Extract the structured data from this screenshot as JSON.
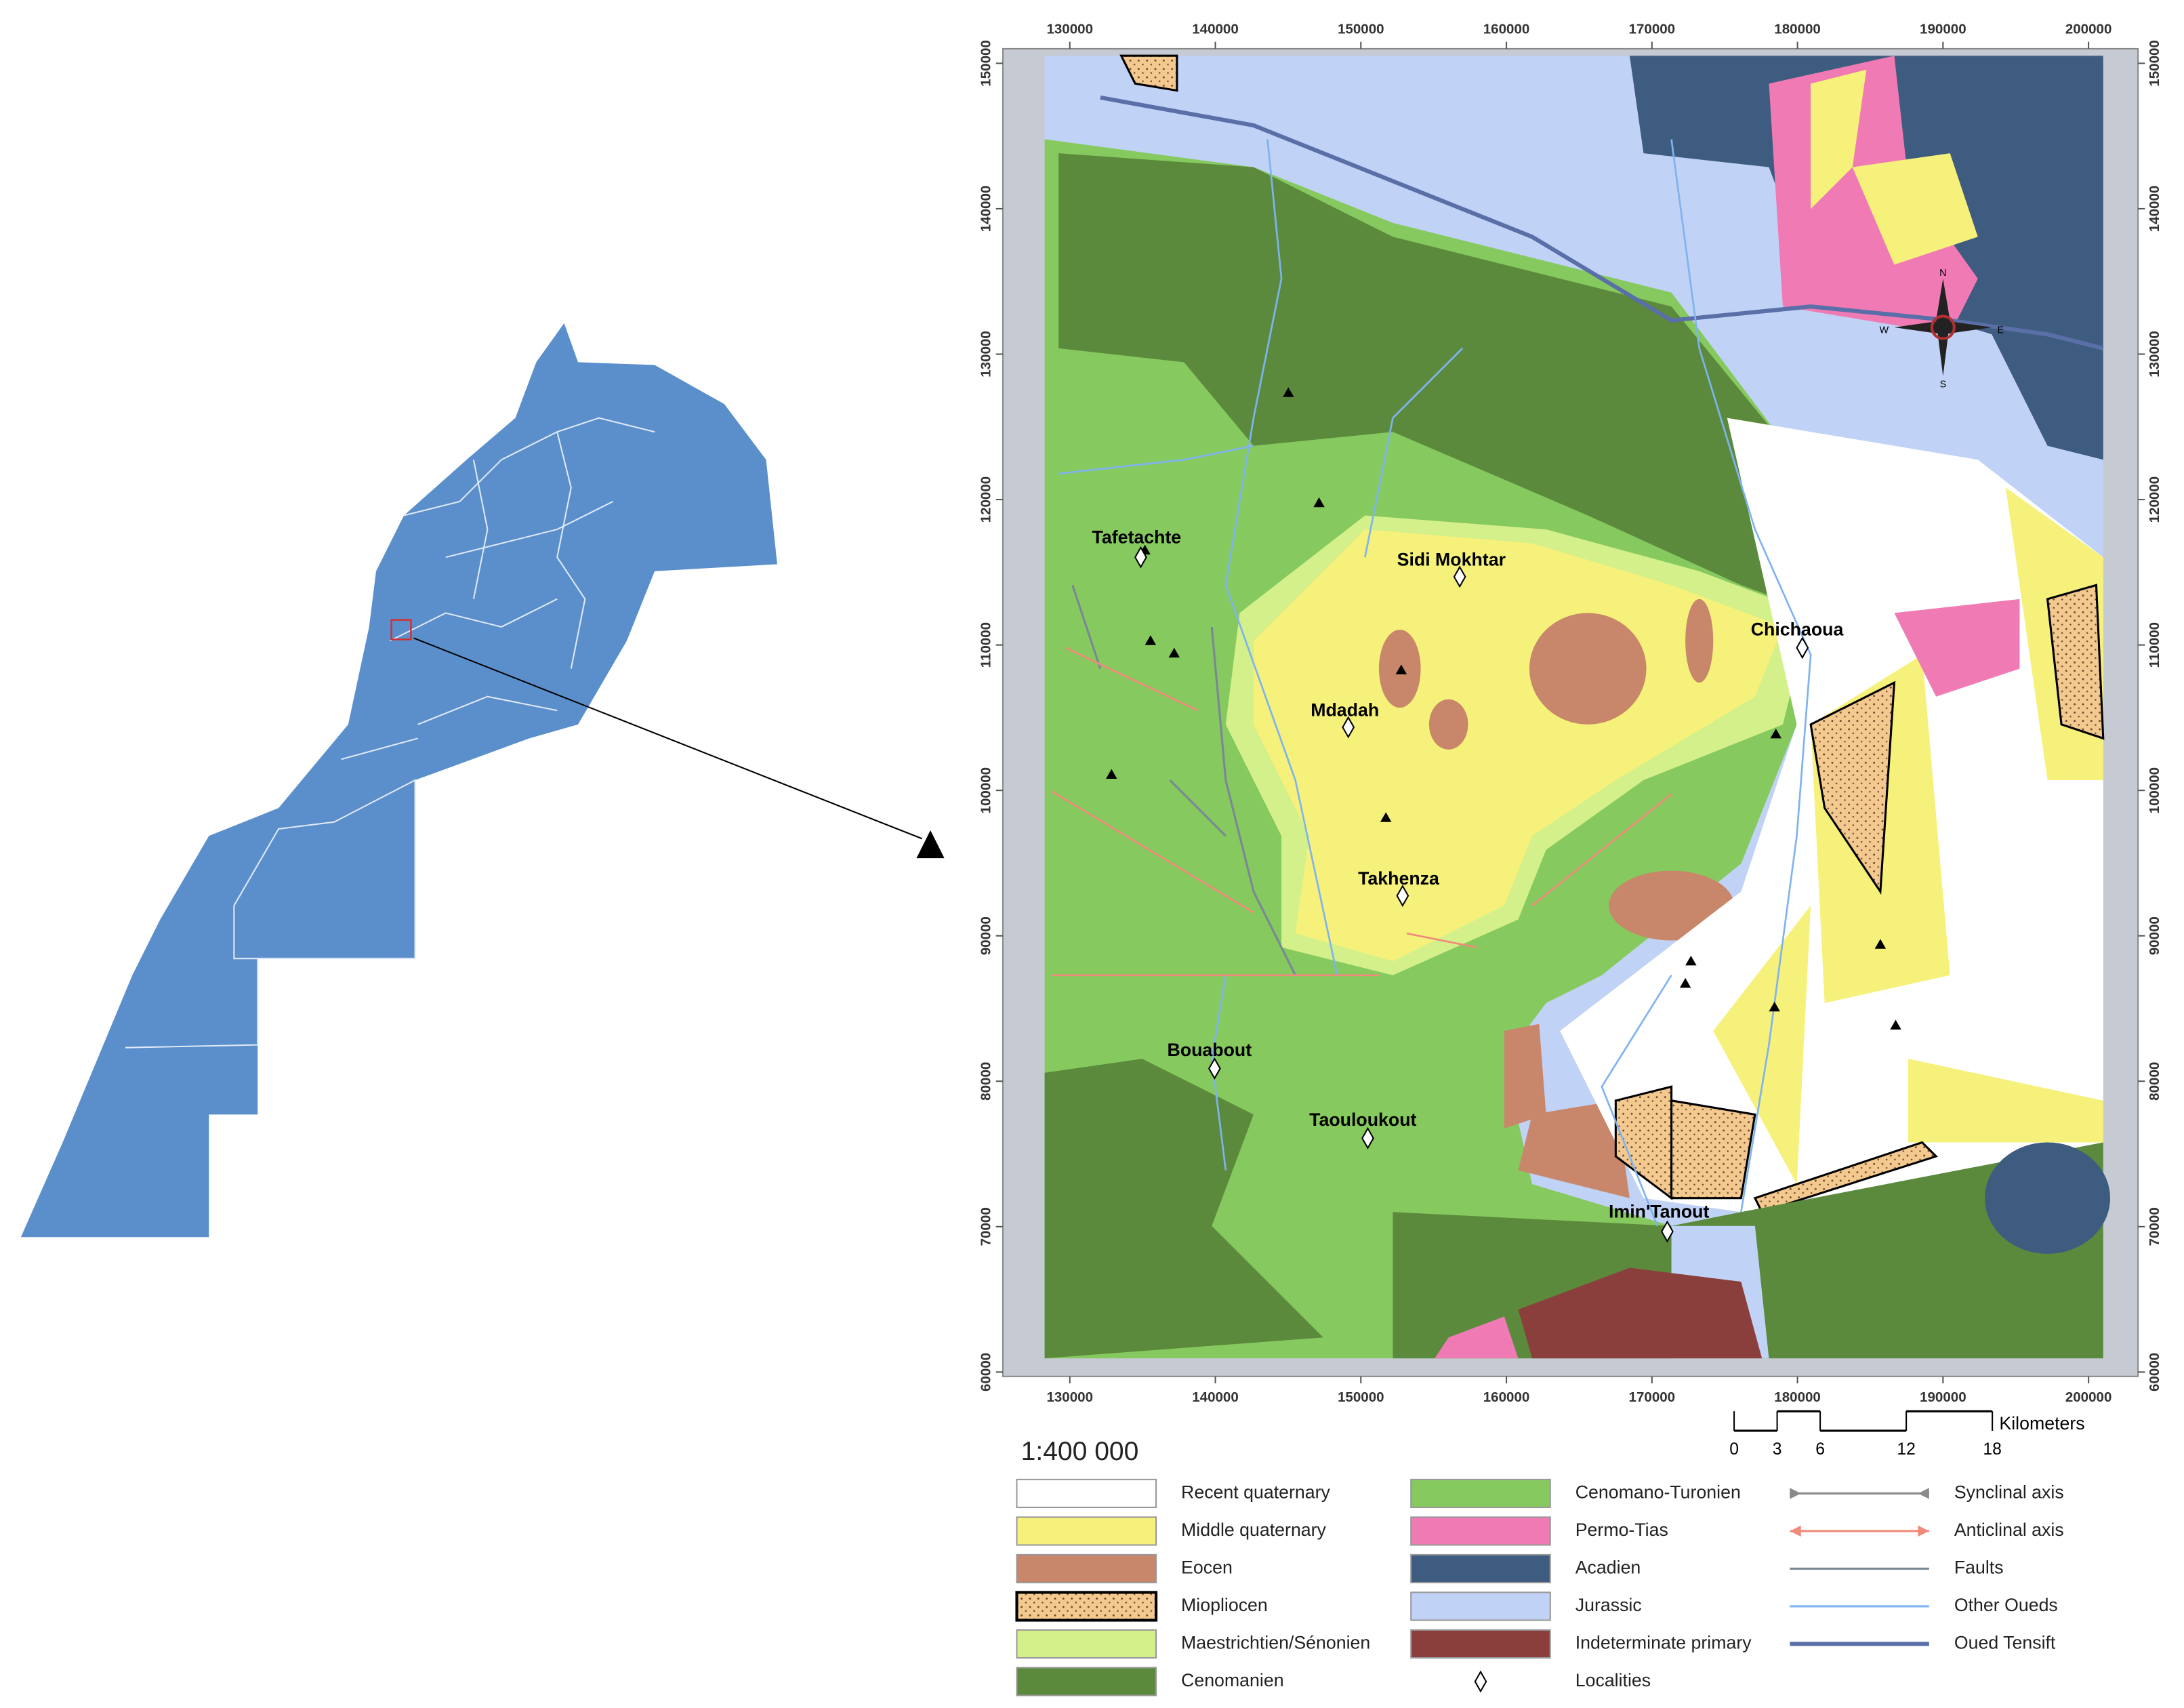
{
  "map": {
    "x_ticks": [
      130000,
      140000,
      150000,
      160000,
      170000,
      180000,
      190000,
      200000
    ],
    "y_ticks": [
      60000,
      70000,
      80000,
      90000,
      100000,
      110000,
      120000,
      130000,
      140000,
      150000
    ],
    "xlim": [
      125400,
      203400
    ],
    "ylim": [
      59700,
      151000
    ],
    "localities": [
      "Tafetachte",
      "Sidi Mokhtar",
      "Chichaoua",
      "Mdadah",
      "Takhenza",
      "Bouabout",
      "Taouloukout",
      "Imin'Tanout"
    ],
    "compass": [
      "N",
      "S",
      "E",
      "W"
    ],
    "scale": "1:400 000",
    "scale_bar": {
      "ticks": [
        0,
        3,
        6,
        12,
        18
      ],
      "unit": "Kilometers"
    },
    "legend": [
      [
        {
          "label": "Recent quaternary",
          "color": "#ffffff",
          "symbol": "fill"
        },
        {
          "label": "Middle quaternary",
          "color": "#f5f17a",
          "symbol": "fill"
        },
        {
          "label": "Eocen",
          "color": "#c8866a",
          "symbol": "fill"
        },
        {
          "label": "Miopliocen",
          "color": "#f3c98f",
          "symbol": "dotted-fill"
        },
        {
          "label": "Maestrichtien/Sénonien",
          "color": "#d4f08a",
          "symbol": "fill"
        },
        {
          "label": "Cenomanien",
          "color": "#5b8a3c",
          "symbol": "fill"
        }
      ],
      [
        {
          "label": "Cenomano-Turonien",
          "color": "#86c95e",
          "symbol": "fill"
        },
        {
          "label": "Permo-Tias",
          "color": "#f07ab4",
          "symbol": "fill"
        },
        {
          "label": "Acadien",
          "color": "#3e5c80",
          "symbol": "fill"
        },
        {
          "label": "Jurassic",
          "color": "#c0d2f5",
          "symbol": "fill"
        },
        {
          "label": "Indeterminate primary",
          "color": "#8b3f3d",
          "symbol": "fill"
        },
        {
          "label": "Localities",
          "color": "#000000",
          "symbol": "diamond"
        }
      ],
      [
        {
          "label": "Synclinal axis",
          "color": "#8a8a8a",
          "symbol": "inward-arrows"
        },
        {
          "label": "Anticlinal axis",
          "color": "#f08a7a",
          "symbol": "outward-arrows"
        },
        {
          "label": "Faults",
          "color": "#7a8796",
          "symbol": "line"
        },
        {
          "label": "Other Oueds",
          "color": "#7fb3f0",
          "symbol": "line"
        },
        {
          "label": "Oued Tensift",
          "color": "#5a6fa8",
          "symbol": "thick-line"
        }
      ]
    ]
  }
}
